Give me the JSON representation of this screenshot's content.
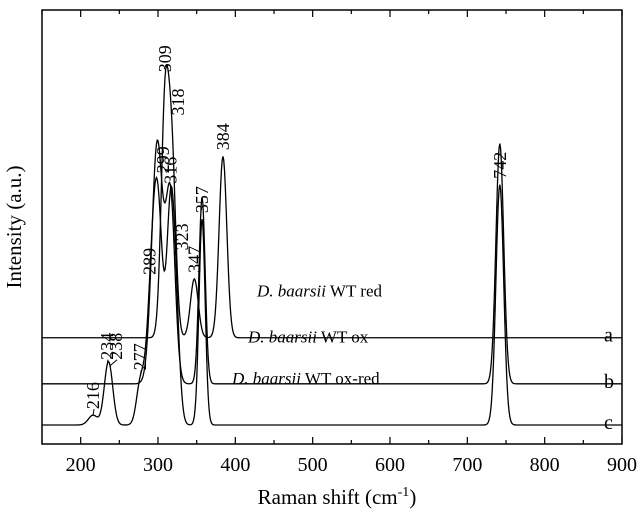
{
  "chart_data": {
    "type": "line",
    "xlabel_main": "Raman shift (cm",
    "xlabel_sup": "-1",
    "xlabel_end": ")",
    "ylabel": "Intensity (a.u.)",
    "xlim": [
      150,
      900
    ],
    "xticks": [
      200,
      300,
      400,
      500,
      600,
      700,
      800,
      900
    ],
    "y_ticks_labeled": false,
    "grid": false,
    "series": [
      {
        "name": "a",
        "title_italic": "D. baarsii",
        "title_rest": " WT red",
        "baseline": 0.89,
        "peaks": [
          {
            "x": 309,
            "label": "309",
            "height": 2.3,
            "width": 5
          },
          {
            "x": 318,
            "label": "318",
            "height": 1.75,
            "width": 5
          },
          {
            "x": 347,
            "label": "347",
            "height": 0.6,
            "width": 5
          },
          {
            "x": 384,
            "label": "384",
            "height": 1.85,
            "width": 5
          }
        ]
      },
      {
        "name": "b",
        "title_italic": "D. baarsii",
        "title_rest": " WT ox",
        "baseline": 0.42,
        "peaks": [
          {
            "x": 299,
            "label": "",
            "height": 2.45,
            "width": 7
          },
          {
            "x": 316,
            "label": "",
            "height": 1.9,
            "width": 6
          },
          {
            "x": 357,
            "label": "",
            "height": 1.9,
            "width": 4
          },
          {
            "x": 742,
            "label": "",
            "height": 2.45,
            "width": 5
          }
        ]
      },
      {
        "name": "c",
        "title_italic": "D. baarsii",
        "title_rest": " WT ox-red",
        "baseline": 0.0,
        "peaks": [
          {
            "x": 216,
            "label": "216",
            "height": 0.1,
            "width": 6
          },
          {
            "x": 234,
            "label": "234",
            "height": 0.35,
            "width": 5
          },
          {
            "x": 238,
            "label": "238",
            "height": 0.35,
            "width": 5
          },
          {
            "x": 277,
            "label": "277",
            "height": 0.4,
            "width": 5
          },
          {
            "x": 289,
            "label": "289",
            "height": 0.6,
            "width": 6
          },
          {
            "x": 299,
            "label": "299",
            "height": 2.35,
            "width": 7
          },
          {
            "x": 316,
            "label": "316",
            "height": 1.9,
            "width": 5
          },
          {
            "x": 323,
            "label": "323",
            "height": 1.0,
            "width": 5
          },
          {
            "x": 357,
            "label": "357",
            "height": 2.1,
            "width": 4
          },
          {
            "x": 742,
            "label": "742",
            "height": 2.45,
            "width": 5
          }
        ]
      }
    ]
  }
}
